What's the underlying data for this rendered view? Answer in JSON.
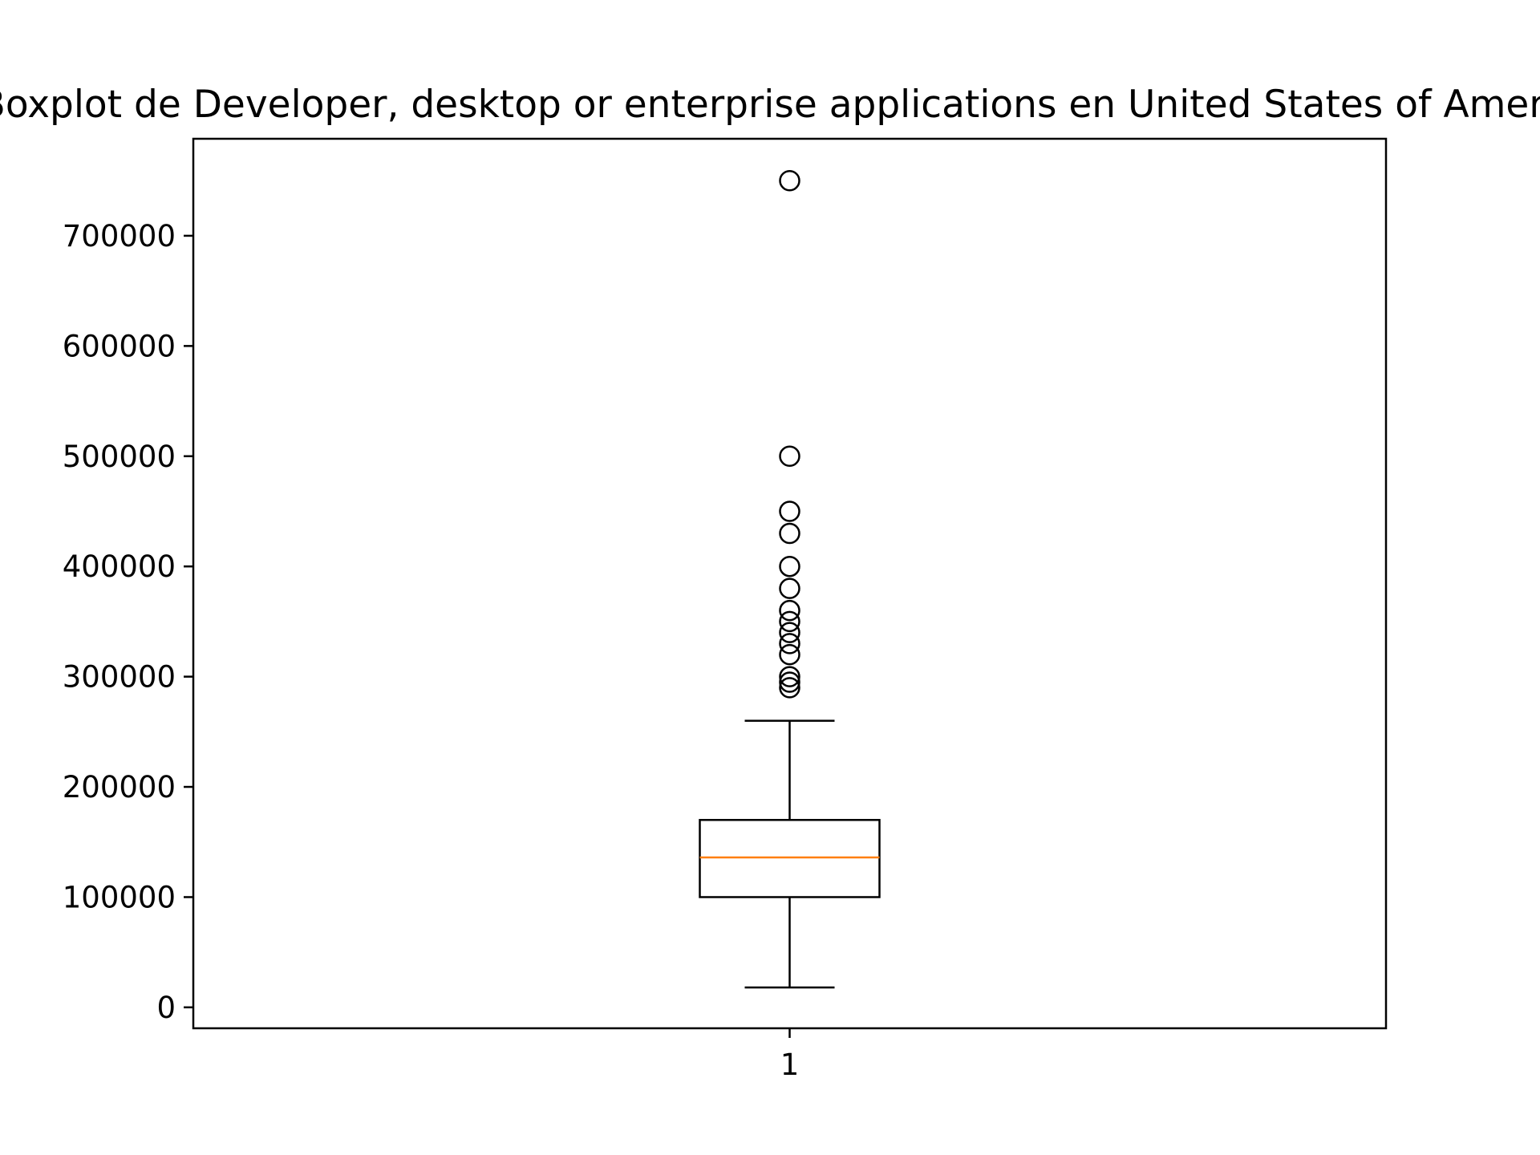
{
  "chart_data": {
    "type": "box",
    "title": "Boxplot de Developer, desktop or enterprise applications en United States of America",
    "xlabel": "",
    "ylabel": "",
    "categories": [
      "1"
    ],
    "ylim": [
      -19000,
      788000
    ],
    "y_ticks": [
      0,
      100000,
      200000,
      300000,
      400000,
      500000,
      600000,
      700000
    ],
    "y_tick_labels": [
      "0",
      "100000",
      "200000",
      "300000",
      "400000",
      "500000",
      "600000",
      "700000"
    ],
    "x_tick_labels": [
      "1"
    ],
    "box": {
      "whisker_low": 18000,
      "q1": 100000,
      "median": 136000,
      "q3": 170000,
      "whisker_high": 260000
    },
    "outliers": [
      290000,
      295000,
      300000,
      320000,
      330000,
      340000,
      350000,
      360000,
      380000,
      400000,
      430000,
      450000,
      500000,
      750000
    ],
    "grid": false,
    "colors": {
      "box": "#000000",
      "median": "#ff7f0e",
      "outlier": "#000000",
      "axes": "#000000"
    }
  }
}
